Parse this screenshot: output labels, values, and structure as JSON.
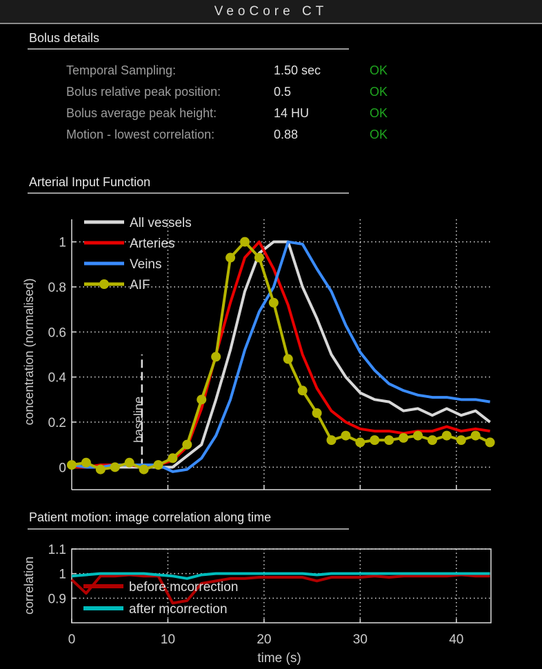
{
  "app": {
    "title": "VeoCore  CT"
  },
  "bolus": {
    "heading": "Bolus details",
    "rows": [
      {
        "label": "Temporal Sampling:",
        "value": "1.50 sec",
        "status": "OK"
      },
      {
        "label": "Bolus relative peak position:",
        "value": "0.5",
        "status": "OK"
      },
      {
        "label": "Bolus average peak height:",
        "value": "14 HU",
        "status": "OK"
      },
      {
        "label": "Motion - lowest correlation:",
        "value": "0.88",
        "status": "OK"
      }
    ],
    "status_color": "#1fa51f"
  },
  "aif_section": {
    "heading": "Arterial Input Function"
  },
  "motion_section": {
    "heading": "Patient motion: image correlation along time"
  },
  "chart_data": [
    {
      "type": "line",
      "title": "",
      "xlabel": "",
      "ylabel": "concentration (normalised)",
      "xlim": [
        0,
        43.6
      ],
      "ylim": [
        -0.1,
        1.1
      ],
      "xticks": [
        10,
        20,
        30,
        40
      ],
      "yticks": [
        0,
        0.2,
        0.4,
        0.6,
        0.8,
        1
      ],
      "ytick_labels": [
        "0",
        "0.2",
        "0.4",
        "0.6",
        "0.8",
        "1"
      ],
      "grid": true,
      "legend": "top-left",
      "annotation": {
        "text": "baseline",
        "x": 7.3,
        "y_range": [
          0,
          0.5
        ]
      },
      "x": [
        0,
        1.5,
        3,
        4.5,
        6,
        7.5,
        9,
        10.5,
        12,
        13.5,
        15,
        16.5,
        18,
        19.5,
        21,
        22.5,
        24,
        25.5,
        27,
        28.5,
        30,
        31.5,
        33,
        34.5,
        36,
        37.5,
        39,
        40.5,
        42,
        43.5
      ],
      "series": [
        {
          "name": "All vessels",
          "color": "#d8d8d8",
          "markers": false,
          "values": [
            0,
            0,
            0,
            0,
            0,
            0,
            0,
            0,
            0.05,
            0.1,
            0.3,
            0.52,
            0.78,
            0.95,
            1.0,
            1.0,
            0.8,
            0.66,
            0.5,
            0.4,
            0.33,
            0.3,
            0.29,
            0.25,
            0.26,
            0.23,
            0.26,
            0.23,
            0.25,
            0.2
          ]
        },
        {
          "name": "Arteries",
          "color": "#e80000",
          "markers": false,
          "values": [
            0,
            0,
            0.01,
            0.01,
            0.01,
            0,
            0.01,
            0.03,
            0.09,
            0.26,
            0.5,
            0.73,
            0.93,
            1.0,
            0.88,
            0.72,
            0.5,
            0.35,
            0.25,
            0.2,
            0.17,
            0.16,
            0.16,
            0.15,
            0.16,
            0.16,
            0.18,
            0.16,
            0.17,
            0.16
          ]
        },
        {
          "name": "Veins",
          "color": "#3a8cff",
          "markers": false,
          "values": [
            0.01,
            0,
            0,
            0.01,
            0.01,
            0.01,
            0.01,
            -0.02,
            -0.01,
            0.04,
            0.14,
            0.3,
            0.52,
            0.69,
            0.8,
            1.0,
            0.99,
            0.88,
            0.78,
            0.63,
            0.51,
            0.43,
            0.37,
            0.34,
            0.32,
            0.31,
            0.31,
            0.3,
            0.3,
            0.29
          ]
        },
        {
          "name": "AIF",
          "color": "#b5b500",
          "markers": true,
          "values": [
            0.01,
            0.02,
            -0.01,
            0,
            0.02,
            -0.01,
            0.01,
            0.04,
            0.1,
            0.3,
            0.49,
            0.93,
            1.0,
            0.93,
            0.73,
            0.48,
            0.34,
            0.24,
            0.12,
            0.14,
            0.11,
            0.12,
            0.12,
            0.13,
            0.14,
            0.12,
            0.14,
            0.12,
            0.14,
            0.11
          ]
        }
      ]
    },
    {
      "type": "line",
      "title": "",
      "xlabel": "time (s)",
      "ylabel": "correlation",
      "xlim": [
        0,
        43.6
      ],
      "ylim": [
        0.8,
        1.1
      ],
      "xticks": [
        0,
        10,
        20,
        30,
        40
      ],
      "xtick_labels": [
        "0",
        "10",
        "20",
        "30",
        "40"
      ],
      "yticks": [
        0.9,
        1,
        1.1
      ],
      "ytick_labels": [
        "0.9",
        "1",
        "1.1"
      ],
      "grid": true,
      "legend": "lower-left",
      "x": [
        0,
        1.5,
        3,
        4.5,
        6,
        7.5,
        9,
        10.5,
        12,
        13.5,
        15,
        16.5,
        18,
        19.5,
        21,
        22.5,
        24,
        25.5,
        27,
        28.5,
        30,
        31.5,
        33,
        34.5,
        36,
        37.5,
        39,
        40.5,
        42,
        43.5
      ],
      "series": [
        {
          "name": "before mcorrection",
          "color": "#b00000",
          "values": [
            0.975,
            0.92,
            0.99,
            0.99,
            0.995,
            0.99,
            0.99,
            0.88,
            0.89,
            0.96,
            0.97,
            0.98,
            0.98,
            0.985,
            0.985,
            0.985,
            0.985,
            0.97,
            0.985,
            0.985,
            0.985,
            0.99,
            0.985,
            0.99,
            0.99,
            0.99,
            0.99,
            0.995,
            0.99,
            0.99
          ]
        },
        {
          "name": "after mcorrection",
          "color": "#00bcbc",
          "values": [
            0.99,
            0.995,
            1.0,
            1.0,
            1.0,
            1.0,
            0.995,
            0.99,
            0.98,
            0.995,
            1.0,
            1.0,
            1.0,
            1.0,
            1.0,
            1.0,
            1.0,
            0.995,
            1.0,
            1.0,
            1.0,
            1.0,
            1.0,
            1.0,
            1.0,
            1.0,
            1.0,
            1.0,
            1.0,
            1.0
          ]
        }
      ]
    }
  ]
}
